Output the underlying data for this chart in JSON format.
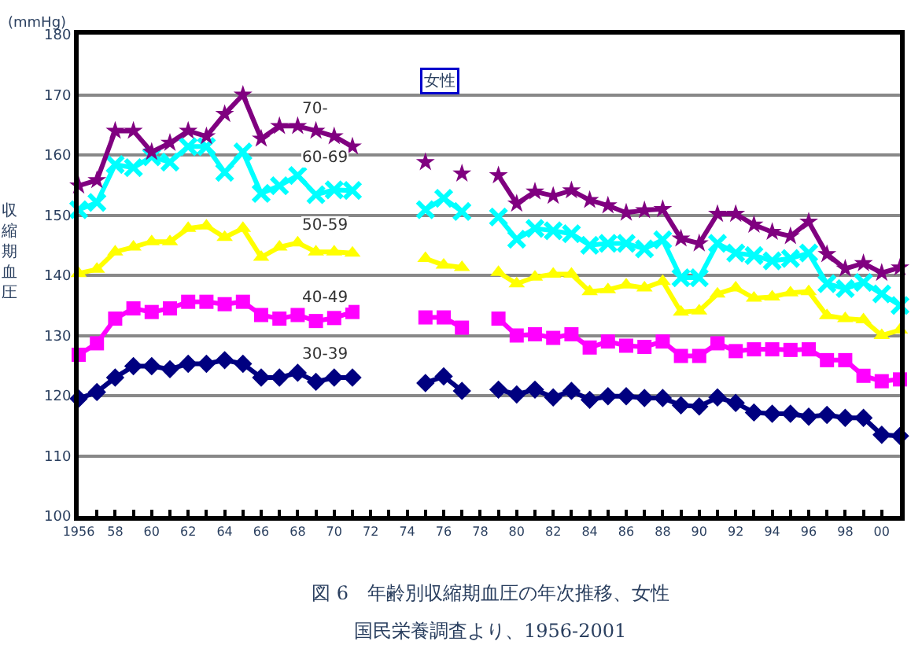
{
  "chart_data": {
    "type": "line",
    "title": "図 6　年齢別収縮期血圧の年次推移、女性",
    "subtitle": "国民栄養調査より、1956-2001",
    "ylabel": "収縮期血圧",
    "annotations": [
      "(mmHg)",
      "女性"
    ],
    "x": [
      1956,
      1957,
      1958,
      1959,
      1960,
      1961,
      1962,
      1963,
      1964,
      1965,
      1966,
      1967,
      1968,
      1969,
      1970,
      1971,
      1972,
      1973,
      1974,
      1975,
      1976,
      1977,
      1978,
      1979,
      1980,
      1981,
      1982,
      1983,
      1984,
      1985,
      1986,
      1987,
      1988,
      1989,
      1990,
      1991,
      1992,
      1993,
      1994,
      1995,
      1996,
      1997,
      1998,
      1999,
      2000,
      2001
    ],
    "series": [
      {
        "name": "30-39",
        "color": "#000080",
        "marker": "diamond",
        "values": [
          119.5,
          120.6,
          123,
          124.9,
          124.9,
          124.4,
          125.3,
          125.3,
          125.9,
          125.3,
          123,
          123,
          123.8,
          122.3,
          123,
          123,
          null,
          null,
          null,
          122.1,
          123.2,
          120.8,
          null,
          121,
          120.2,
          121,
          119.7,
          120.8,
          119.3,
          119.9,
          119.9,
          119.6,
          119.6,
          118.4,
          118.2,
          119.7,
          118.8,
          117.2,
          117,
          117,
          116.5,
          116.8,
          116.3,
          116.3,
          113.5,
          113.3
        ]
      },
      {
        "name": "40-49",
        "color": "#ff00ff",
        "marker": "square",
        "values": [
          126.8,
          128.7,
          132.8,
          134.5,
          133.9,
          134.5,
          135.6,
          135.6,
          135.2,
          135.6,
          133.4,
          132.8,
          133.4,
          132.4,
          132.9,
          133.9,
          null,
          null,
          null,
          133,
          133,
          131.3,
          null,
          132.8,
          130,
          130.2,
          129.6,
          130.2,
          128,
          129,
          128.3,
          128.1,
          129,
          126.6,
          126.6,
          128.7,
          127.4,
          127.7,
          127.7,
          127.6,
          127.7,
          125.9,
          125.9,
          123.3,
          122.4,
          122.7
        ]
      },
      {
        "name": "50-59",
        "color": "#ffff00",
        "marker": "triangle",
        "values": [
          140.3,
          141,
          143.9,
          144.7,
          145.6,
          145.6,
          147.8,
          148.2,
          146.3,
          147.8,
          143,
          144.7,
          145.4,
          143.9,
          143.9,
          143.7,
          null,
          null,
          null,
          142.8,
          141.7,
          141.3,
          null,
          140.5,
          138.6,
          139.7,
          140.2,
          140.2,
          137.3,
          137.6,
          138.4,
          137.9,
          139,
          133.9,
          134.1,
          136.9,
          137.9,
          136.2,
          136.4,
          137.1,
          137.3,
          133.3,
          132.8,
          132.6,
          130,
          130.9
        ]
      },
      {
        "name": "60-69",
        "color": "#00ffff",
        "marker": "cross",
        "values": [
          150.9,
          152.1,
          158.4,
          157.9,
          159.7,
          158.8,
          161.4,
          161.4,
          157.1,
          160.5,
          153.6,
          154.9,
          156.6,
          153.4,
          154.2,
          154.1,
          null,
          null,
          null,
          150.9,
          152.8,
          150.6,
          null,
          149.7,
          146,
          147.8,
          147.4,
          146.9,
          145,
          145.3,
          145.3,
          144.4,
          145.9,
          139.6,
          139.6,
          145.3,
          143.7,
          143.3,
          142.4,
          142.8,
          143.7,
          138.6,
          137.8,
          138.8,
          136.9,
          135
        ]
      },
      {
        "name": "70-",
        "color": "#800080",
        "marker": "star",
        "values": [
          154.9,
          155.8,
          164,
          164,
          160.5,
          162,
          164,
          163.1,
          166.8,
          170,
          162.7,
          164.8,
          164.8,
          164,
          163.1,
          161.4,
          null,
          null,
          null,
          158.8,
          null,
          156.9,
          null,
          156.6,
          151.9,
          153.9,
          153.2,
          154.1,
          152.5,
          151.6,
          150.4,
          150.8,
          151,
          146.1,
          145.3,
          150.2,
          150.2,
          148.4,
          147.2,
          146.5,
          148.9,
          143.5,
          141.1,
          142,
          140.4,
          141.3
        ]
      }
    ],
    "xlim": [
      1956,
      2001
    ],
    "xticks": [
      {
        "value": 1956,
        "label": "1956"
      },
      {
        "value": 1957,
        "label": null
      },
      {
        "value": 1958,
        "label": "58"
      },
      {
        "value": 1959,
        "label": null
      },
      {
        "value": 1960,
        "label": "60"
      },
      {
        "value": 1961,
        "label": null
      },
      {
        "value": 1962,
        "label": "62"
      },
      {
        "value": 1963,
        "label": null
      },
      {
        "value": 1964,
        "label": "64"
      },
      {
        "value": 1965,
        "label": null
      },
      {
        "value": 1966,
        "label": "66"
      },
      {
        "value": 1967,
        "label": null
      },
      {
        "value": 1968,
        "label": "68"
      },
      {
        "value": 1969,
        "label": null
      },
      {
        "value": 1970,
        "label": "70"
      },
      {
        "value": 1971,
        "label": null
      },
      {
        "value": 1972,
        "label": "72"
      },
      {
        "value": 1973,
        "label": null
      },
      {
        "value": 1974,
        "label": "74"
      },
      {
        "value": 1975,
        "label": null
      },
      {
        "value": 1976,
        "label": "76"
      },
      {
        "value": 1977,
        "label": null
      },
      {
        "value": 1978,
        "label": "78"
      },
      {
        "value": 1979,
        "label": null
      },
      {
        "value": 1980,
        "label": "80"
      },
      {
        "value": 1981,
        "label": null
      },
      {
        "value": 1982,
        "label": "82"
      },
      {
        "value": 1983,
        "label": null
      },
      {
        "value": 1984,
        "label": "84"
      },
      {
        "value": 1985,
        "label": null
      },
      {
        "value": 1986,
        "label": "86"
      },
      {
        "value": 1987,
        "label": null
      },
      {
        "value": 1988,
        "label": "88"
      },
      {
        "value": 1989,
        "label": null
      },
      {
        "value": 1990,
        "label": "90"
      },
      {
        "value": 1991,
        "label": null
      },
      {
        "value": 1992,
        "label": "92"
      },
      {
        "value": 1993,
        "label": null
      },
      {
        "value": 1994,
        "label": "94"
      },
      {
        "value": 1995,
        "label": null
      },
      {
        "value": 1996,
        "label": "96"
      },
      {
        "value": 1997,
        "label": null
      },
      {
        "value": 1998,
        "label": "98"
      },
      {
        "value": 1999,
        "label": null
      },
      {
        "value": 2000,
        "label": "00"
      },
      {
        "value": 2001,
        "label": null
      }
    ],
    "ylim": [
      100,
      180
    ],
    "yticks": [
      100,
      110,
      120,
      130,
      140,
      150,
      160,
      170,
      180
    ],
    "grid": "y",
    "legend": false,
    "line_style": "solid"
  }
}
